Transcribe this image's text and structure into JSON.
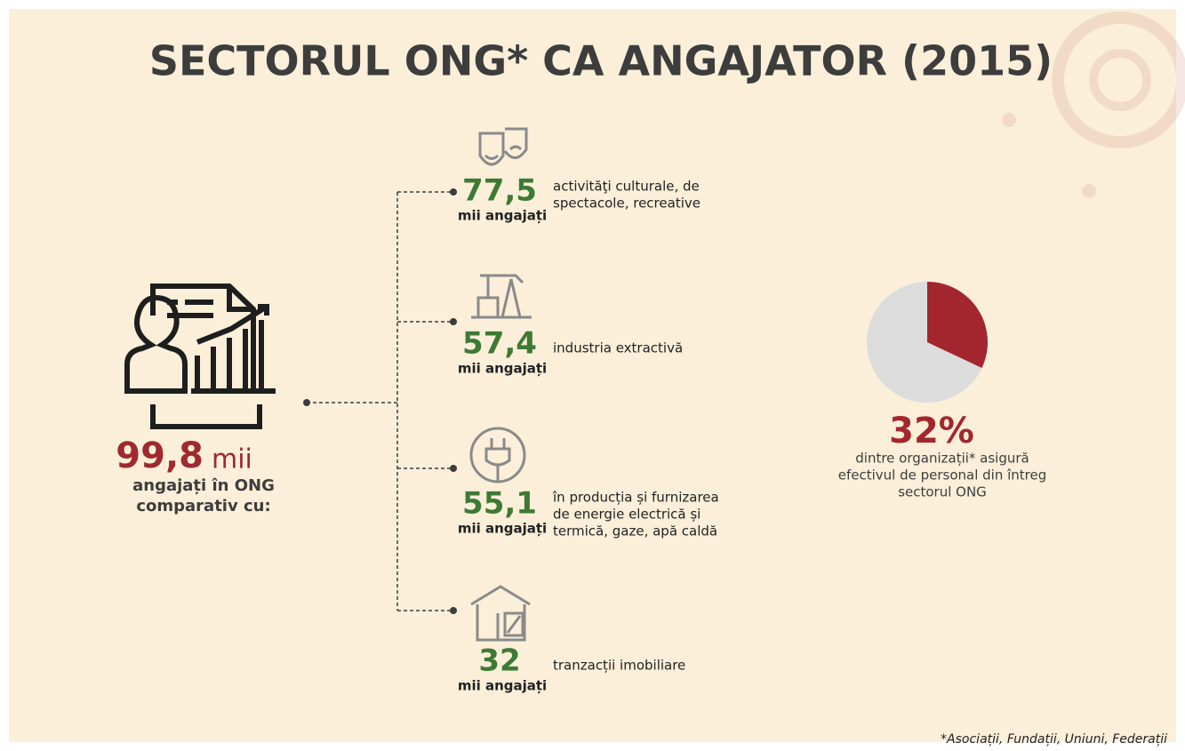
{
  "header": {
    "title": "SECTORUL ONG* CA ANGAJATOR (2015)"
  },
  "main": {
    "value": "99,8",
    "unit": "mii",
    "lines": [
      "angajați în ONG",
      "comparativ cu:"
    ]
  },
  "items": [
    {
      "value": "77,5",
      "unit": "mii angajați",
      "description": [
        "activităţi culturale, de",
        "spectacole, recreative"
      ]
    },
    {
      "value": "57,4",
      "unit": "mii angajați",
      "description": [
        "industria extractivă"
      ]
    },
    {
      "value": "55,1",
      "unit": "mii angajați",
      "description": [
        "în producția și furnizarea",
        "de energie electrică și",
        "termică, gaze, apă caldă"
      ]
    },
    {
      "value": "32",
      "unit": "mii angajați",
      "description": [
        "tranzacții imobiliare"
      ]
    }
  ],
  "pie": {
    "value": 32,
    "label": "32%",
    "lines": [
      "dintre organizații* asigură",
      "efectivul de personal din întreg",
      "sectorul ONG"
    ]
  },
  "footnote": "*Asociații, Fundații, Uniuni, Federații"
}
